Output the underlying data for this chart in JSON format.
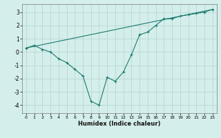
{
  "xlabel": "Humidex (Indice chaleur)",
  "ylabel": "",
  "background_color": "#d4eeeb",
  "grid_color": "#b8d8d4",
  "line_color": "#1a7a6e",
  "xlim": [
    -0.5,
    23.5
  ],
  "ylim": [
    -4.6,
    3.6
  ],
  "yticks": [
    -4,
    -3,
    -2,
    -1,
    0,
    1,
    2,
    3
  ],
  "xticks": [
    0,
    1,
    2,
    3,
    4,
    5,
    6,
    7,
    8,
    9,
    10,
    11,
    12,
    13,
    14,
    15,
    16,
    17,
    18,
    19,
    20,
    21,
    22,
    23
  ],
  "line1_x": [
    0,
    1,
    2,
    3,
    4,
    5,
    6,
    7,
    8,
    9,
    10,
    11,
    12,
    13,
    14,
    15,
    16,
    17,
    18,
    19,
    20,
    21,
    22,
    23
  ],
  "line1_y": [
    0.3,
    0.5,
    0.2,
    0.0,
    -0.5,
    -0.8,
    -1.3,
    -1.8,
    -3.7,
    -4.0,
    -1.9,
    -2.2,
    -1.5,
    -0.2,
    1.3,
    1.5,
    2.0,
    2.5,
    2.5,
    2.7,
    2.8,
    2.9,
    3.0,
    3.2
  ],
  "line2_x": [
    0,
    23
  ],
  "line2_y": [
    0.3,
    3.2
  ]
}
